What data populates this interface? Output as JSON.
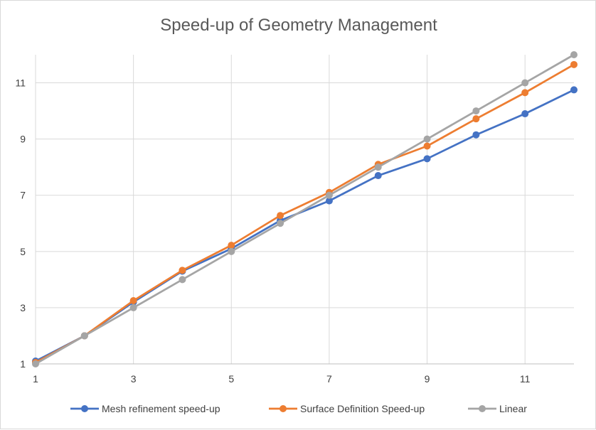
{
  "chart_data": {
    "type": "line",
    "title": "Speed-up of Geometry Management",
    "xlabel": "",
    "ylabel": "",
    "x": [
      1,
      2,
      3,
      4,
      5,
      6,
      7,
      8,
      9,
      10,
      11,
      12
    ],
    "xlim": [
      1,
      12
    ],
    "ylim": [
      1,
      12
    ],
    "x_ticks": [
      1,
      3,
      5,
      7,
      9,
      11
    ],
    "y_ticks": [
      1,
      3,
      5,
      7,
      9,
      11
    ],
    "grid": "horizontal",
    "legend": "bottom",
    "series": [
      {
        "name": "Mesh refinement speed-up",
        "color": "#4472c4",
        "values": [
          1.1,
          2.0,
          3.2,
          4.3,
          5.1,
          6.1,
          6.8,
          7.7,
          8.3,
          9.15,
          9.9,
          10.75
        ]
      },
      {
        "name": "Surface Definition Speed-up",
        "color": "#ed7d31",
        "values": [
          1.05,
          2.0,
          3.25,
          4.33,
          5.22,
          6.28,
          7.1,
          8.1,
          8.75,
          9.72,
          10.65,
          11.65
        ]
      },
      {
        "name": "Linear",
        "color": "#a5a5a5",
        "values": [
          1,
          2,
          3,
          4,
          5,
          6,
          7,
          8,
          9,
          10,
          11,
          12
        ]
      }
    ]
  }
}
